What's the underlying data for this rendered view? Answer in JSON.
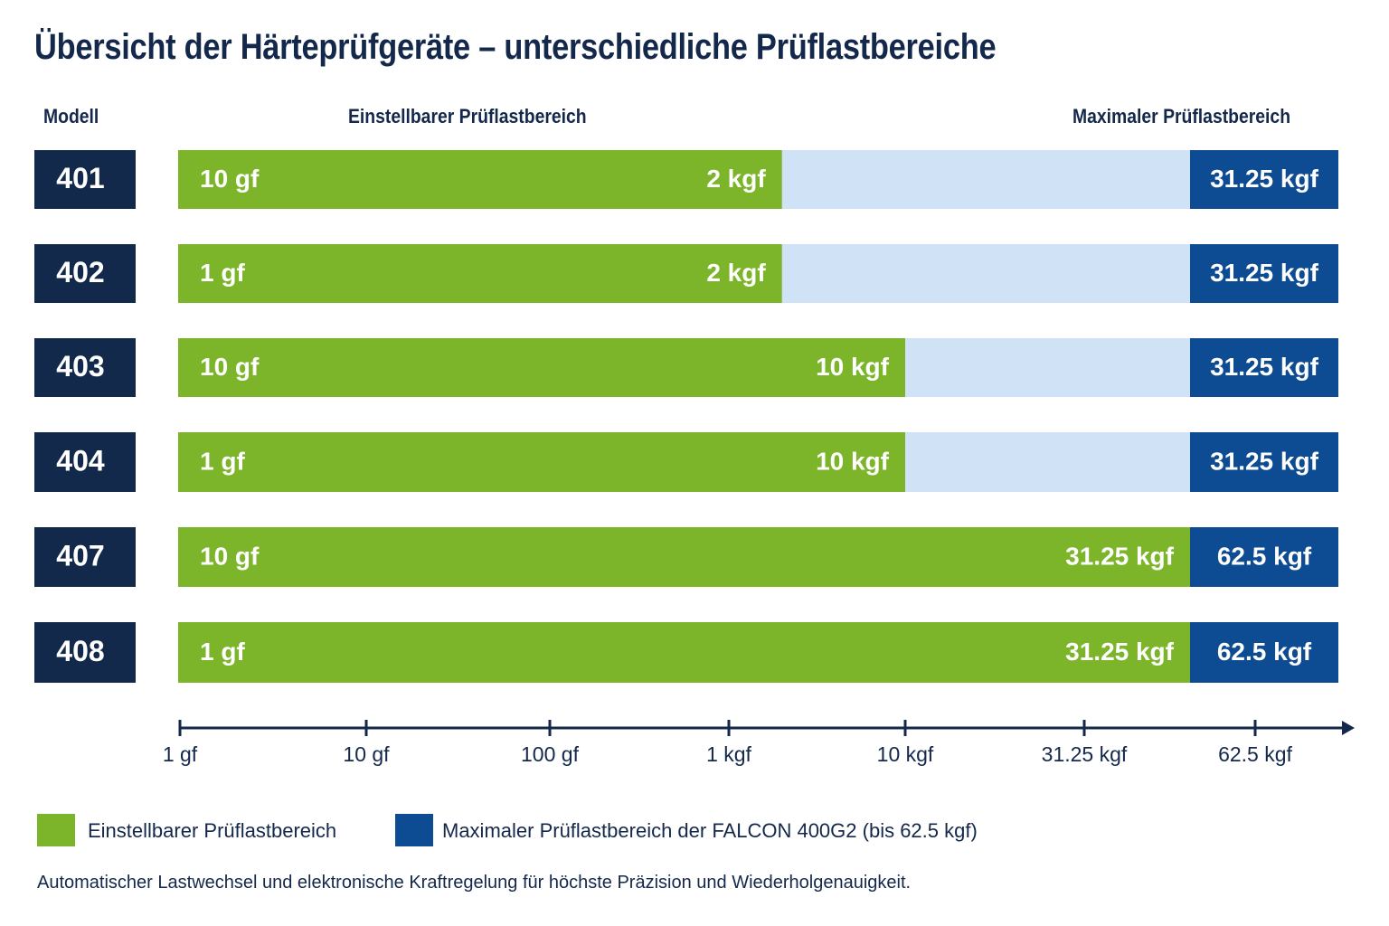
{
  "colors": {
    "model_box": "#13294b",
    "adjustable": "#7db52a",
    "track": "#d0e2f6",
    "max_range": "#0d4b92",
    "axis": "#14284b",
    "text_dark": "#14284b",
    "text_light": "#ffffff"
  },
  "header": {
    "col_model": "Modell",
    "col_range": "Einstellbarer Prüflastbereich",
    "col_max": "Maximaler Prüflastbereich"
  },
  "chart_data": {
    "type": "bar",
    "orientation": "horizontal",
    "title": "Übersicht der Härteprüfgeräte – unterschiedliche Prüflastbereiche",
    "x_scale": "log",
    "x_unit": "gf",
    "x_ticks": [
      {
        "value": 1,
        "label": "1 gf"
      },
      {
        "value": 10,
        "label": "10 gf"
      },
      {
        "value": 100,
        "label": "100 gf"
      },
      {
        "value": 1000,
        "label": "1 kgf"
      },
      {
        "value": 10000,
        "label": "10 kgf"
      },
      {
        "value": 31250,
        "label": "31.25 kgf"
      },
      {
        "value": 62500,
        "label": "62.5 kgf"
      }
    ],
    "rows": [
      {
        "model": "401",
        "min": 10,
        "max": 2000,
        "min_label": "10 gf",
        "max_label": "2 kgf",
        "device_max": 31250,
        "device_max_label": "31.25 kgf"
      },
      {
        "model": "402",
        "min": 1,
        "max": 2000,
        "min_label": "1 gf",
        "max_label": "2 kgf",
        "device_max": 31250,
        "device_max_label": "31.25 kgf"
      },
      {
        "model": "403",
        "min": 10,
        "max": 10000,
        "min_label": "10 gf",
        "max_label": "10 kgf",
        "device_max": 31250,
        "device_max_label": "31.25 kgf"
      },
      {
        "model": "404",
        "min": 1,
        "max": 10000,
        "min_label": "1 gf",
        "max_label": "10 kgf",
        "device_max": 31250,
        "device_max_label": "31.25 kgf"
      },
      {
        "model": "407",
        "min": 10,
        "max": 31250,
        "min_label": "10 gf",
        "max_label": "31.25 kgf",
        "device_max": 62500,
        "device_max_label": "62.5 kgf"
      },
      {
        "model": "408",
        "min": 1,
        "max": 31250,
        "min_label": "1 gf",
        "max_label": "31.25 kgf",
        "device_max": 62500,
        "device_max_label": "62.5 kgf"
      }
    ],
    "legend": [
      {
        "label": "Einstellbarer Prüflastbereich",
        "color": "#7db52a"
      },
      {
        "label": "Maximaler Prüflastbereich der FALCON 400G2 (bis 62.5 kgf)",
        "color": "#0d4b92"
      }
    ]
  },
  "footnote": "Automatischer Lastwechsel und elektronische Kraftregelung für höchste Präzision und Wiederholgenauigkeit."
}
